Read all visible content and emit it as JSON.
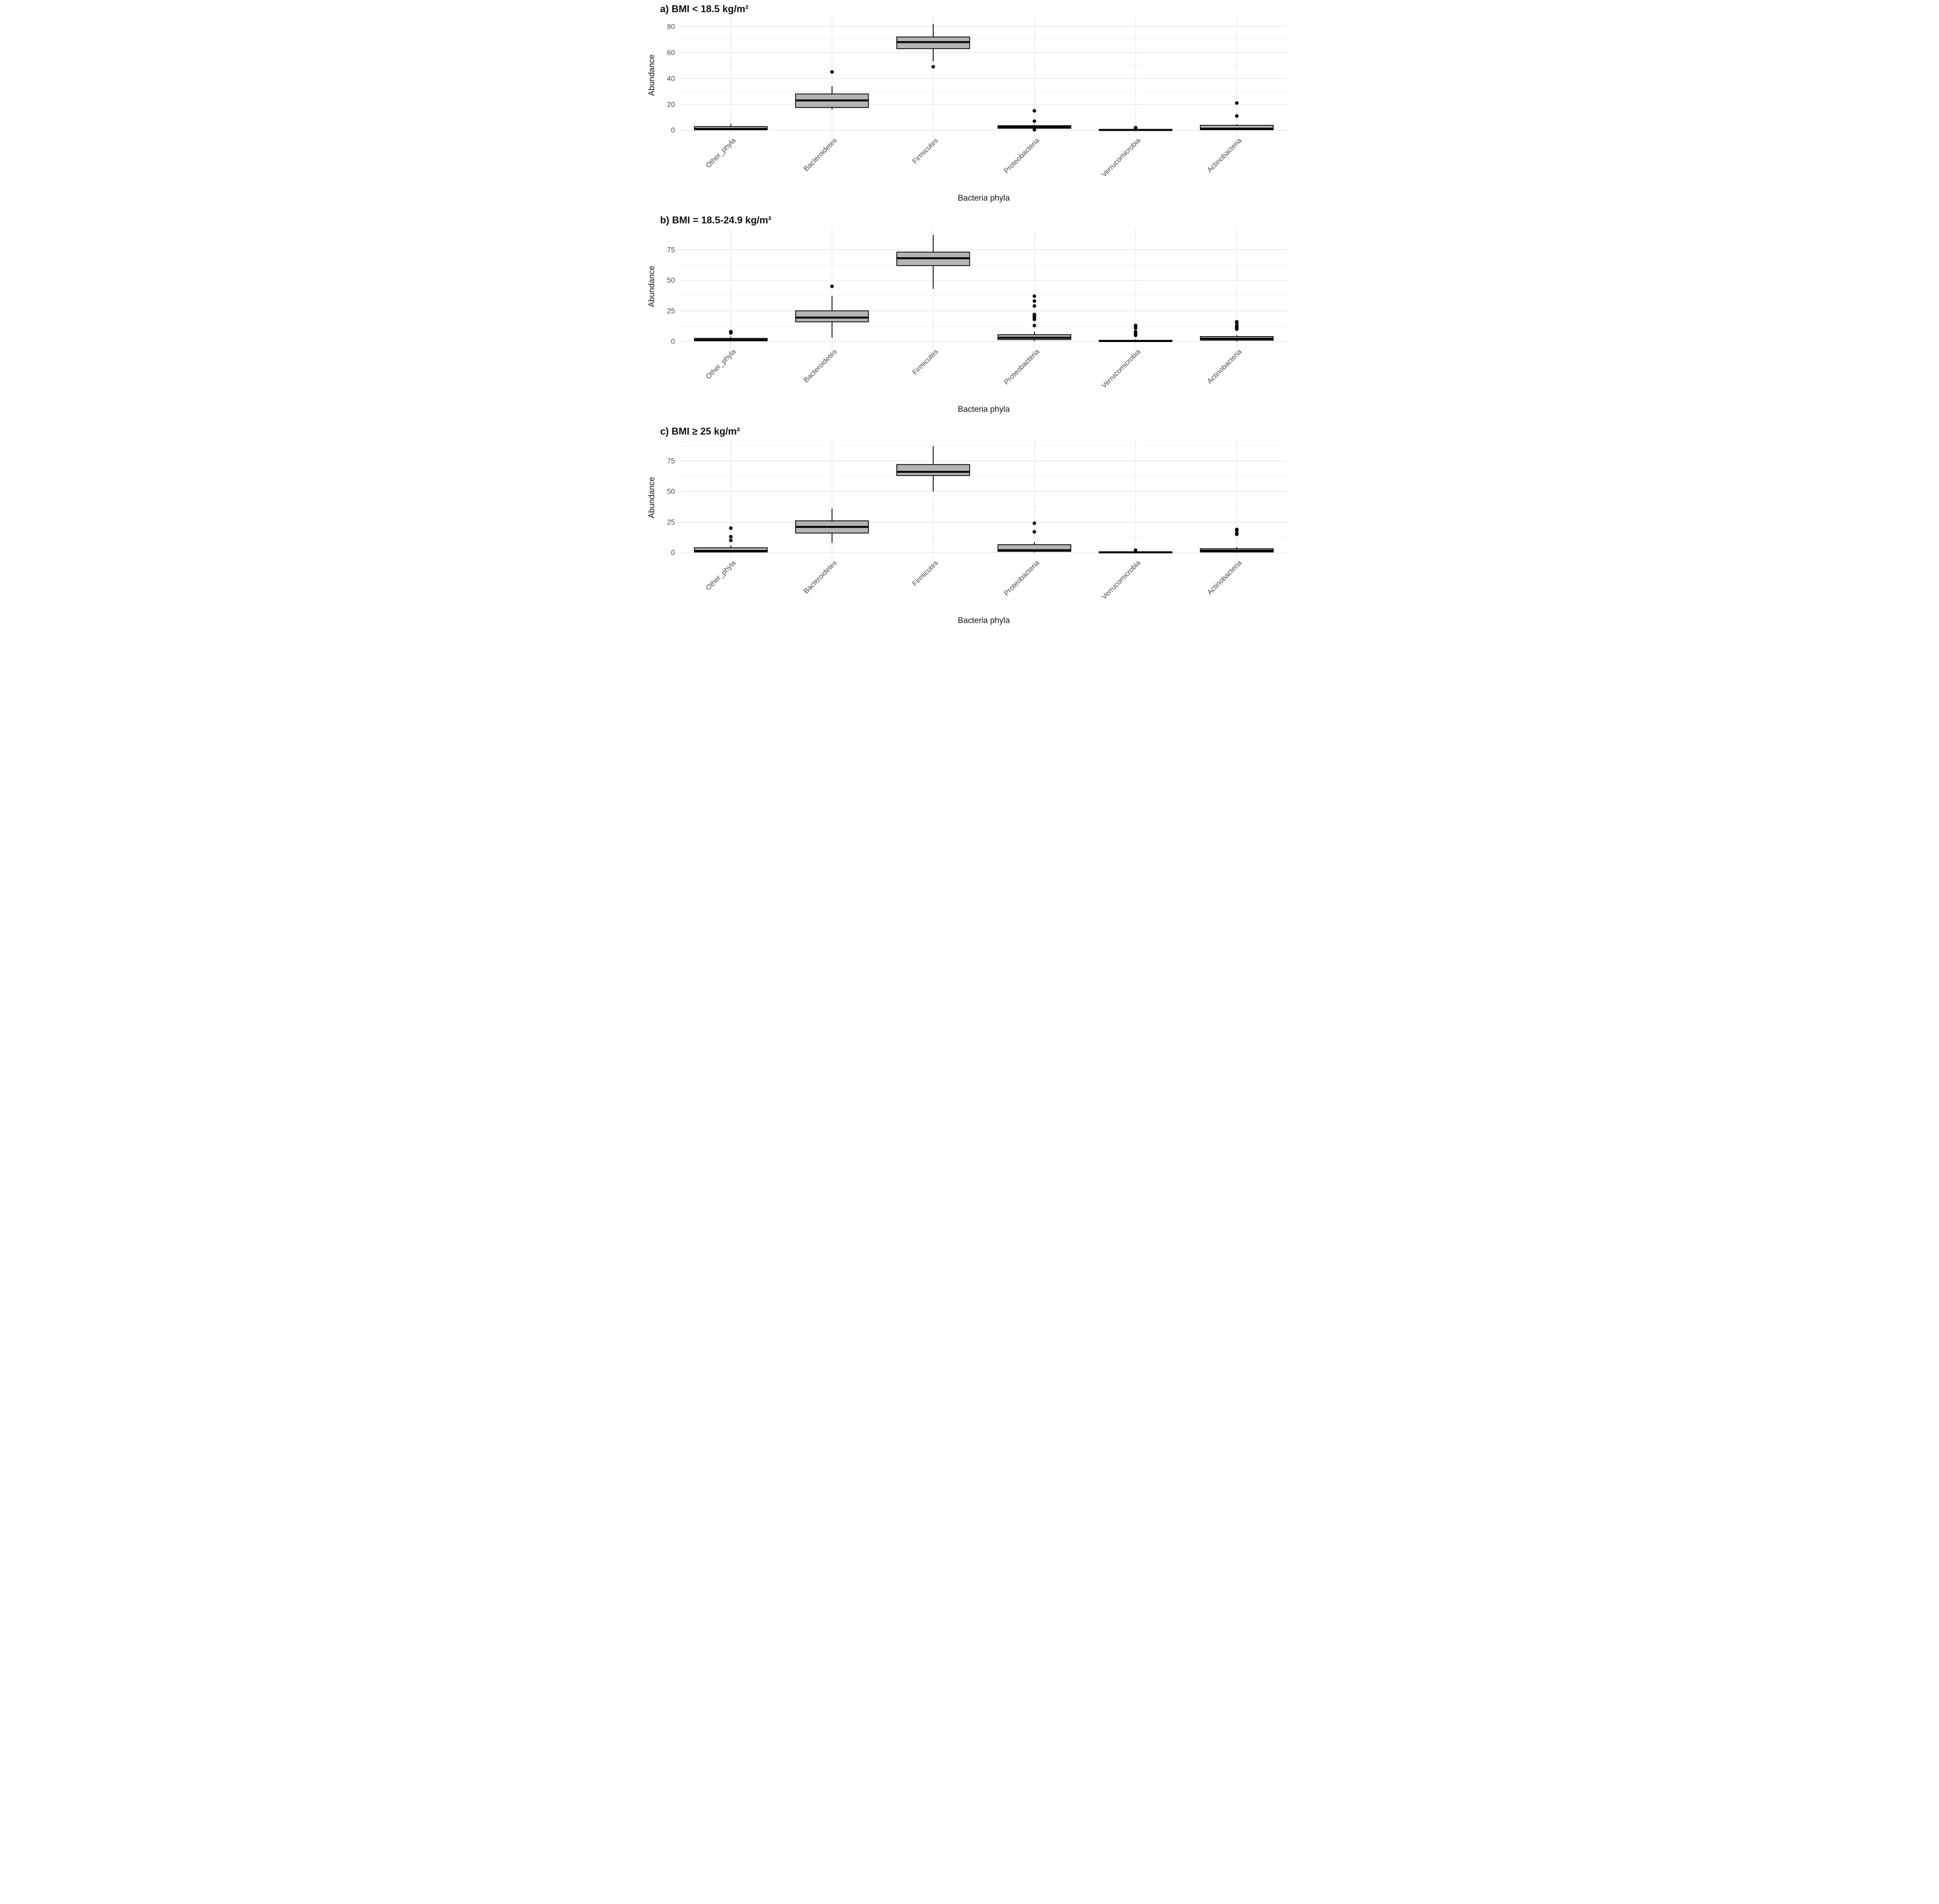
{
  "figure": {
    "background": "#ffffff",
    "box_fill": "#b4b4b4",
    "box_stroke": "#000000",
    "median_stroke": "#000000",
    "grid_major_color": "#e2e2e2",
    "grid_minor_color": "#efefef",
    "grid_vertical_color": "#e6e6e6",
    "tick_label_color": "#4a4a4a",
    "text_color": "#111111",
    "xlabel": "Bacteria phyla",
    "ylabel": "Abundance"
  },
  "chart_data": [
    {
      "id": "a",
      "type": "boxplot",
      "title": "a) BMI < 18.5 kg/m²",
      "xlabel": "Bacteria phyla",
      "ylabel": "Abundance",
      "ylim": [
        0,
        85
      ],
      "yticks": [
        0,
        20,
        40,
        60,
        80
      ],
      "grid": true,
      "legend": "none",
      "categories": [
        "Other_phyla",
        "Bacteroidetes",
        "Firmicutes",
        "Proteobacteria",
        "Verrucomicrobia",
        "Actinobacteria"
      ],
      "series": [
        {
          "name": "Other_phyla",
          "whislo": 0.05,
          "q1": 0.3,
          "med": 1.0,
          "q3": 2.8,
          "whishi": 5.0,
          "outliers": []
        },
        {
          "name": "Bacteroidetes",
          "whislo": 16.0,
          "q1": 17.5,
          "med": 23.0,
          "q3": 28.0,
          "whishi": 34.0,
          "outliers": [
            45
          ]
        },
        {
          "name": "Firmicutes",
          "whislo": 53.0,
          "q1": 63.0,
          "med": 68.0,
          "q3": 72.0,
          "whishi": 82.0,
          "outliers": [
            49
          ]
        },
        {
          "name": "Proteobacteria",
          "whislo": 0.9,
          "q1": 1.5,
          "med": 2.5,
          "q3": 3.5,
          "whishi": 4.2,
          "outliers": [
            15,
            7,
            0.3
          ]
        },
        {
          "name": "Verrucomicrobia",
          "whislo": 0.0,
          "q1": 0.05,
          "med": 0.25,
          "q3": 0.6,
          "whishi": 1.0,
          "outliers": [
            2,
            1.4
          ]
        },
        {
          "name": "Actinobacteria",
          "whislo": 0.05,
          "q1": 0.4,
          "med": 1.2,
          "q3": 3.8,
          "whishi": 4.6,
          "outliers": [
            21,
            11
          ]
        }
      ]
    },
    {
      "id": "b",
      "type": "boxplot",
      "title": "b) BMI = 18.5-24.9 kg/m²",
      "xlabel": "Bacteria phyla",
      "ylabel": "Abundance",
      "ylim": [
        0,
        90
      ],
      "yticks": [
        0,
        25,
        50,
        75
      ],
      "grid": true,
      "legend": "none",
      "categories": [
        "Other_phyla",
        "Bacteroidetes",
        "Firmicutes",
        "Proteobacteria",
        "Verrucomicrobia",
        "Actinobacteria"
      ],
      "series": [
        {
          "name": "Other_phyla",
          "whislo": 0.05,
          "q1": 0.5,
          "med": 1.3,
          "q3": 2.5,
          "whishi": 4.0,
          "outliers": [
            8,
            7
          ]
        },
        {
          "name": "Bacteroidetes",
          "whislo": 3.0,
          "q1": 16.0,
          "med": 19.5,
          "q3": 25.0,
          "whishi": 37.0,
          "outliers": [
            45
          ]
        },
        {
          "name": "Firmicutes",
          "whislo": 43.0,
          "q1": 62.0,
          "med": 68.0,
          "q3": 73.0,
          "whishi": 87.0,
          "outliers": []
        },
        {
          "name": "Proteobacteria",
          "whislo": 0.2,
          "q1": 1.5,
          "med": 3.0,
          "q3": 5.5,
          "whishi": 8.0,
          "outliers": [
            37,
            33,
            29,
            22,
            21,
            20,
            19,
            18,
            13
          ]
        },
        {
          "name": "Verrucomicrobia",
          "whislo": 0.0,
          "q1": 0.1,
          "med": 0.3,
          "q3": 0.9,
          "whishi": 1.6,
          "outliers": [
            13,
            11,
            8,
            7,
            6,
            5
          ]
        },
        {
          "name": "Actinobacteria",
          "whislo": 0.1,
          "q1": 1.0,
          "med": 2.2,
          "q3": 4.0,
          "whishi": 5.0,
          "outliers": [
            16,
            15,
            13,
            12,
            11,
            10
          ]
        }
      ]
    },
    {
      "id": "c",
      "type": "boxplot",
      "title": "c) BMI ≥ 25 kg/m²",
      "xlabel": "Bacteria phyla",
      "ylabel": "Abundance",
      "ylim": [
        0,
        90
      ],
      "yticks": [
        0,
        25,
        50,
        75
      ],
      "grid": true,
      "legend": "none",
      "categories": [
        "Other_phyla",
        "Bacteroidetes",
        "Firmicutes",
        "Proteobacteria",
        "Verrucomicrobia",
        "Actinobacteria"
      ],
      "series": [
        {
          "name": "Other_phyla",
          "whislo": 0.05,
          "q1": 0.5,
          "med": 1.4,
          "q3": 4.0,
          "whishi": 6.0,
          "outliers": [
            20,
            13,
            10
          ]
        },
        {
          "name": "Bacteroidetes",
          "whislo": 8.0,
          "q1": 16.0,
          "med": 21.0,
          "q3": 26.0,
          "whishi": 36.0,
          "outliers": []
        },
        {
          "name": "Firmicutes",
          "whislo": 50.0,
          "q1": 63.0,
          "med": 66.0,
          "q3": 72.0,
          "whishi": 87.0,
          "outliers": []
        },
        {
          "name": "Proteobacteria",
          "whislo": 0.2,
          "q1": 1.0,
          "med": 2.0,
          "q3": 6.5,
          "whishi": 8.5,
          "outliers": [
            24,
            17
          ]
        },
        {
          "name": "Verrucomicrobia",
          "whislo": 0.0,
          "q1": 0.05,
          "med": 0.25,
          "q3": 0.7,
          "whishi": 1.2,
          "outliers": [
            2
          ]
        },
        {
          "name": "Actinobacteria",
          "whislo": 0.1,
          "q1": 0.5,
          "med": 1.6,
          "q3": 3.2,
          "whishi": 4.5,
          "outliers": [
            19,
            18,
            16,
            15
          ]
        }
      ]
    }
  ]
}
